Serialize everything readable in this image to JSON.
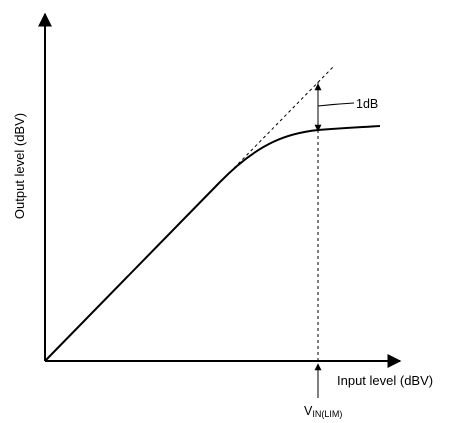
{
  "diagram": {
    "x_axis_label": "Input level (dBV)",
    "y_axis_label": "Output level (dBV)",
    "compression_label": "1dB",
    "vin_label": {
      "main": "V",
      "subscript": "IN(LIM)"
    }
  },
  "colors": {
    "line": "#000000",
    "background": "#ffffff"
  }
}
